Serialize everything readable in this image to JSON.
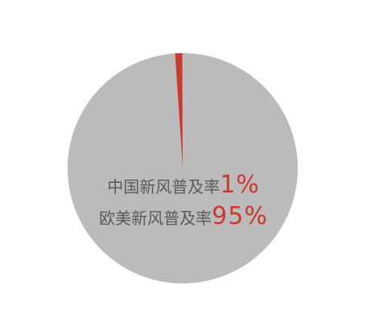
{
  "chart_data": {
    "type": "pie",
    "series": [
      {
        "values": [
          99,
          1
        ],
        "colors": [
          "#bbbbbb",
          "#c8392e"
        ]
      }
    ],
    "annotations": [
      {
        "text": "中国新风普及率",
        "value": "1%",
        "value_color": "#c8392e"
      },
      {
        "text": "欧美新风普及率",
        "value": "95%",
        "value_color": "#c8392e"
      }
    ]
  }
}
